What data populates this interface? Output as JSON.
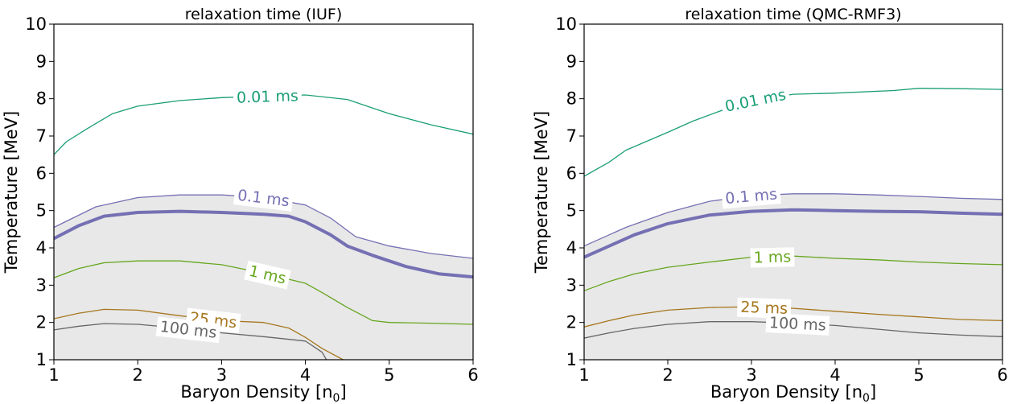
{
  "colors": {
    "band_fill": "#e8e8e8",
    "frame": "#000000"
  },
  "chart_data": [
    {
      "type": "line",
      "title": "relaxation time (IUF)",
      "xlabel": "Baryon Density [n",
      "xlabel_sub": "0",
      "xlabel_end": "]",
      "ylabel": "Temperature [MeV]",
      "xlim": [
        1,
        6
      ],
      "ylim": [
        1,
        10
      ],
      "xticks": [
        1,
        2,
        3,
        4,
        5,
        6
      ],
      "yticks": [
        1,
        2,
        3,
        4,
        5,
        6,
        7,
        8,
        9,
        10
      ],
      "grid": false,
      "shaded_band": {
        "upper": [
          [
            1,
            4.55
          ],
          [
            1.5,
            5.1
          ],
          [
            2,
            5.35
          ],
          [
            2.5,
            5.42
          ],
          [
            3,
            5.42
          ],
          [
            3.5,
            5.35
          ],
          [
            4,
            5.15
          ],
          [
            4.3,
            4.8
          ],
          [
            4.6,
            4.3
          ],
          [
            5,
            4.05
          ],
          [
            5.5,
            3.85
          ],
          [
            6,
            3.72
          ]
        ],
        "lower": [
          [
            1,
            1
          ],
          [
            6,
            1
          ]
        ]
      },
      "series": [
        {
          "name": "0.01 ms",
          "color": "#1b9e77",
          "width": 1.3,
          "points": [
            [
              1,
              6.5
            ],
            [
              1.15,
              6.85
            ],
            [
              1.4,
              7.2
            ],
            [
              1.7,
              7.6
            ],
            [
              2,
              7.8
            ],
            [
              2.5,
              7.95
            ],
            [
              3,
              8.03
            ],
            [
              3.3,
              8.05
            ],
            [
              4,
              8.1
            ],
            [
              4.5,
              7.98
            ],
            [
              5,
              7.6
            ],
            [
              5.5,
              7.3
            ],
            [
              6,
              7.05
            ]
          ],
          "label_at": 3.55
        },
        {
          "name": "0.1 ms",
          "color": "#7570b3",
          "width": 1.3,
          "points": [
            [
              1,
              4.55
            ],
            [
              1.5,
              5.1
            ],
            [
              2,
              5.35
            ],
            [
              2.5,
              5.42
            ],
            [
              3,
              5.42
            ],
            [
              3.5,
              5.35
            ],
            [
              4,
              5.15
            ],
            [
              4.3,
              4.8
            ],
            [
              4.6,
              4.3
            ],
            [
              5,
              4.05
            ],
            [
              5.5,
              3.85
            ],
            [
              6,
              3.72
            ]
          ],
          "label_at": 3.5
        },
        {
          "name": "",
          "color": "#7570b3",
          "width": 4,
          "points": [
            [
              1,
              4.25
            ],
            [
              1.3,
              4.6
            ],
            [
              1.6,
              4.85
            ],
            [
              2,
              4.95
            ],
            [
              2.5,
              4.98
            ],
            [
              3,
              4.95
            ],
            [
              3.5,
              4.9
            ],
            [
              3.8,
              4.85
            ],
            [
              4,
              4.7
            ],
            [
              4.3,
              4.35
            ],
            [
              4.5,
              4.05
            ],
            [
              4.8,
              3.8
            ],
            [
              5.2,
              3.5
            ],
            [
              5.6,
              3.3
            ],
            [
              6,
              3.22
            ]
          ],
          "label_at": null
        },
        {
          "name": "1 ms",
          "color": "#66a61e",
          "width": 1.3,
          "points": [
            [
              1,
              3.2
            ],
            [
              1.3,
              3.45
            ],
            [
              1.6,
              3.6
            ],
            [
              2,
              3.65
            ],
            [
              2.5,
              3.65
            ],
            [
              3,
              3.55
            ],
            [
              3.5,
              3.32
            ],
            [
              4,
              3.05
            ],
            [
              4.2,
              2.8
            ],
            [
              4.5,
              2.4
            ],
            [
              4.8,
              2.05
            ],
            [
              5,
              2.0
            ],
            [
              5.5,
              1.98
            ],
            [
              6,
              1.95
            ]
          ],
          "label_at": 3.55
        },
        {
          "name": "25 ms",
          "color": "#a6761d",
          "width": 1.3,
          "points": [
            [
              1,
              2.1
            ],
            [
              1.3,
              2.25
            ],
            [
              1.6,
              2.35
            ],
            [
              2,
              2.33
            ],
            [
              2.5,
              2.18
            ],
            [
              3,
              2.05
            ],
            [
              3.5,
              2.0
            ],
            [
              3.8,
              1.85
            ],
            [
              4,
              1.6
            ],
            [
              4.2,
              1.3
            ],
            [
              4.45,
              1.0
            ]
          ],
          "label_at": 2.9
        },
        {
          "name": "100 ms",
          "color": "#666666",
          "width": 1.3,
          "points": [
            [
              1,
              1.8
            ],
            [
              1.3,
              1.9
            ],
            [
              1.6,
              1.97
            ],
            [
              2,
              1.95
            ],
            [
              2.5,
              1.85
            ],
            [
              3,
              1.72
            ],
            [
              3.5,
              1.62
            ],
            [
              4,
              1.5
            ],
            [
              4.2,
              1.2
            ],
            [
              4.25,
              1.0
            ]
          ],
          "label_at": 2.6
        }
      ]
    },
    {
      "type": "line",
      "title": "relaxation time (QMC-RMF3)",
      "xlabel": "Baryon Density [n",
      "xlabel_sub": "0",
      "xlabel_end": "]",
      "ylabel": "Temperature [MeV]",
      "xlim": [
        1,
        6
      ],
      "ylim": [
        1,
        10
      ],
      "xticks": [
        1,
        2,
        3,
        4,
        5,
        6
      ],
      "yticks": [
        1,
        2,
        3,
        4,
        5,
        6,
        7,
        8,
        9,
        10
      ],
      "grid": false,
      "shaded_band": {
        "upper": [
          [
            1,
            4.05
          ],
          [
            1.5,
            4.55
          ],
          [
            2,
            4.95
          ],
          [
            2.5,
            5.25
          ],
          [
            3,
            5.4
          ],
          [
            3.5,
            5.45
          ],
          [
            4,
            5.45
          ],
          [
            4.5,
            5.42
          ],
          [
            5,
            5.38
          ],
          [
            5.5,
            5.33
          ],
          [
            6,
            5.3
          ]
        ],
        "lower": [
          [
            1,
            1
          ],
          [
            6,
            1
          ]
        ]
      },
      "series": [
        {
          "name": "0.01 ms",
          "color": "#1b9e77",
          "width": 1.3,
          "points": [
            [
              1,
              5.92
            ],
            [
              1.3,
              6.3
            ],
            [
              1.5,
              6.62
            ],
            [
              2,
              7.1
            ],
            [
              2.3,
              7.4
            ],
            [
              2.6,
              7.65
            ],
            [
              3,
              7.95
            ],
            [
              3.5,
              8.12
            ],
            [
              4,
              8.15
            ],
            [
              4.7,
              8.22
            ],
            [
              5,
              8.28
            ],
            [
              5.5,
              8.27
            ],
            [
              6,
              8.25
            ]
          ],
          "label_at": 3.05
        },
        {
          "name": "0.1 ms",
          "color": "#7570b3",
          "width": 1.3,
          "points": [
            [
              1,
              4.05
            ],
            [
              1.5,
              4.55
            ],
            [
              2,
              4.95
            ],
            [
              2.5,
              5.25
            ],
            [
              3,
              5.4
            ],
            [
              3.5,
              5.45
            ],
            [
              4,
              5.45
            ],
            [
              4.5,
              5.42
            ],
            [
              5,
              5.38
            ],
            [
              5.5,
              5.33
            ],
            [
              6,
              5.3
            ]
          ],
          "label_at": 3.0
        },
        {
          "name": "",
          "color": "#7570b3",
          "width": 4,
          "points": [
            [
              1,
              3.75
            ],
            [
              1.3,
              4.05
            ],
            [
              1.6,
              4.35
            ],
            [
              2,
              4.65
            ],
            [
              2.5,
              4.88
            ],
            [
              3,
              4.98
            ],
            [
              3.5,
              5.02
            ],
            [
              4,
              5.0
            ],
            [
              4.5,
              4.98
            ],
            [
              5,
              4.97
            ],
            [
              5.5,
              4.93
            ],
            [
              6,
              4.9
            ]
          ],
          "label_at": null
        },
        {
          "name": "1 ms",
          "color": "#66a61e",
          "width": 1.3,
          "points": [
            [
              1,
              2.85
            ],
            [
              1.3,
              3.1
            ],
            [
              1.6,
              3.3
            ],
            [
              2,
              3.48
            ],
            [
              2.5,
              3.62
            ],
            [
              3,
              3.75
            ],
            [
              3.5,
              3.78
            ],
            [
              4,
              3.72
            ],
            [
              4.5,
              3.68
            ],
            [
              5,
              3.62
            ],
            [
              5.5,
              3.58
            ],
            [
              6,
              3.55
            ]
          ],
          "label_at": 3.25
        },
        {
          "name": "25 ms",
          "color": "#a6761d",
          "width": 1.3,
          "points": [
            [
              1,
              1.88
            ],
            [
              1.3,
              2.05
            ],
            [
              1.6,
              2.2
            ],
            [
              2,
              2.33
            ],
            [
              2.5,
              2.4
            ],
            [
              3,
              2.42
            ],
            [
              3.5,
              2.38
            ],
            [
              4,
              2.3
            ],
            [
              4.5,
              2.22
            ],
            [
              5,
              2.15
            ],
            [
              5.5,
              2.08
            ],
            [
              6,
              2.05
            ]
          ],
          "label_at": 3.15
        },
        {
          "name": "100 ms",
          "color": "#666666",
          "width": 1.3,
          "points": [
            [
              1,
              1.58
            ],
            [
              1.3,
              1.72
            ],
            [
              1.6,
              1.84
            ],
            [
              2,
              1.95
            ],
            [
              2.5,
              2.02
            ],
            [
              3,
              2.02
            ],
            [
              3.5,
              1.98
            ],
            [
              4,
              1.92
            ],
            [
              4.5,
              1.82
            ],
            [
              5,
              1.72
            ],
            [
              5.5,
              1.66
            ],
            [
              6,
              1.62
            ]
          ],
          "label_at": 3.55
        }
      ]
    }
  ]
}
